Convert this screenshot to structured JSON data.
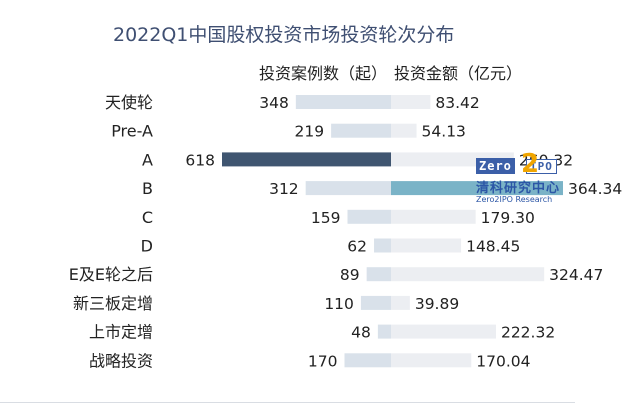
{
  "chart_data": {
    "type": "bar",
    "title": "2022Q1中国股权投资市场投资轮次分布",
    "categories": [
      "天使轮",
      "Pre-A",
      "A",
      "B",
      "C",
      "D",
      "E及E轮之后",
      "新三板定增",
      "上市定增",
      "战略投资"
    ],
    "series": [
      {
        "name": "投资案例数（起）",
        "values": [
          348,
          219,
          618,
          312,
          159,
          62,
          89,
          110,
          48,
          170
        ],
        "highlight_index": 2,
        "highlight_color": "#3f5570",
        "color": "#d9e1ea"
      },
      {
        "name": "投资金额（亿元）",
        "values": [
          83.42,
          54.13,
          260.32,
          364.34,
          179.3,
          148.45,
          324.47,
          39.89,
          222.32,
          170.04
        ],
        "labels": [
          "83.42",
          "54.13",
          "260.32",
          "364.34",
          "179.30",
          "148.45",
          "324.47",
          "39.89",
          "222.32",
          "170.04"
        ],
        "highlight_index": 3,
        "highlight_color": "#7ab3c7",
        "color": "#eceef2"
      }
    ],
    "xlim_left": [
      0,
      618
    ],
    "xlim_right": [
      0,
      364.34
    ],
    "grid": false,
    "legend": "none"
  },
  "watermark": {
    "brand_left": "Zero",
    "brand_digit": "2",
    "brand_right": "IPO",
    "name_cn": "清科研究中心",
    "name_en": "Zero2IPO Research"
  }
}
